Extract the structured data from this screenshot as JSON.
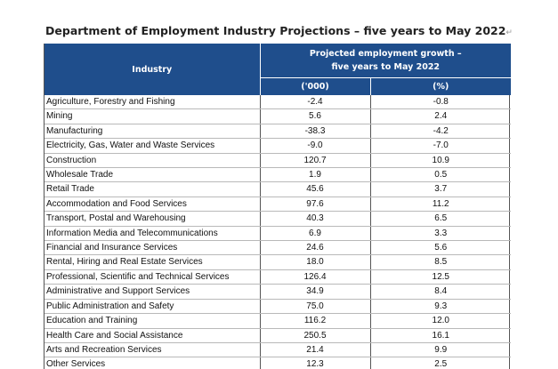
{
  "title": "Department of Employment Industry Projections – five years to May 2022",
  "title_mark": "↵",
  "table": {
    "header_industry": "Industry",
    "header_growth_line1": "Projected employment growth –",
    "header_growth_line2": "five years to May 2022",
    "header_unit_thousands": "('000)",
    "header_unit_percent": "(%)",
    "rows": [
      {
        "industry": "Agriculture, Forestry and Fishing",
        "thousands": "-2.4",
        "percent": "-0.8"
      },
      {
        "industry": "Mining",
        "thousands": "5.6",
        "percent": "2.4"
      },
      {
        "industry": "Manufacturing",
        "thousands": "-38.3",
        "percent": "-4.2"
      },
      {
        "industry": "Electricity, Gas, Water and Waste Services",
        "thousands": "-9.0",
        "percent": "-7.0"
      },
      {
        "industry": "Construction",
        "thousands": "120.7",
        "percent": "10.9"
      },
      {
        "industry": "Wholesale Trade",
        "thousands": "1.9",
        "percent": "0.5"
      },
      {
        "industry": "Retail Trade",
        "thousands": "45.6",
        "percent": "3.7"
      },
      {
        "industry": "Accommodation and Food Services",
        "thousands": "97.6",
        "percent": "11.2"
      },
      {
        "industry": "Transport, Postal and Warehousing",
        "thousands": "40.3",
        "percent": "6.5"
      },
      {
        "industry": "Information Media and Telecommunications",
        "thousands": "6.9",
        "percent": "3.3"
      },
      {
        "industry": "Financial and Insurance Services",
        "thousands": "24.6",
        "percent": "5.6"
      },
      {
        "industry": "Rental, Hiring and Real Estate Services",
        "thousands": "18.0",
        "percent": "8.5"
      },
      {
        "industry": "Professional, Scientific and Technical Services",
        "thousands": "126.4",
        "percent": "12.5"
      },
      {
        "industry": "Administrative and Support Services",
        "thousands": "34.9",
        "percent": "8.4"
      },
      {
        "industry": "Public Administration and Safety",
        "thousands": "75.0",
        "percent": "9.3"
      },
      {
        "industry": "Education and Training",
        "thousands": "116.2",
        "percent": "12.0"
      },
      {
        "industry": "Health Care and Social Assistance",
        "thousands": "250.5",
        "percent": "16.1"
      },
      {
        "industry": "Arts and Recreation Services",
        "thousands": "21.4",
        "percent": "9.9"
      },
      {
        "industry": "Other Services",
        "thousands": "12.3",
        "percent": "2.5"
      }
    ]
  }
}
